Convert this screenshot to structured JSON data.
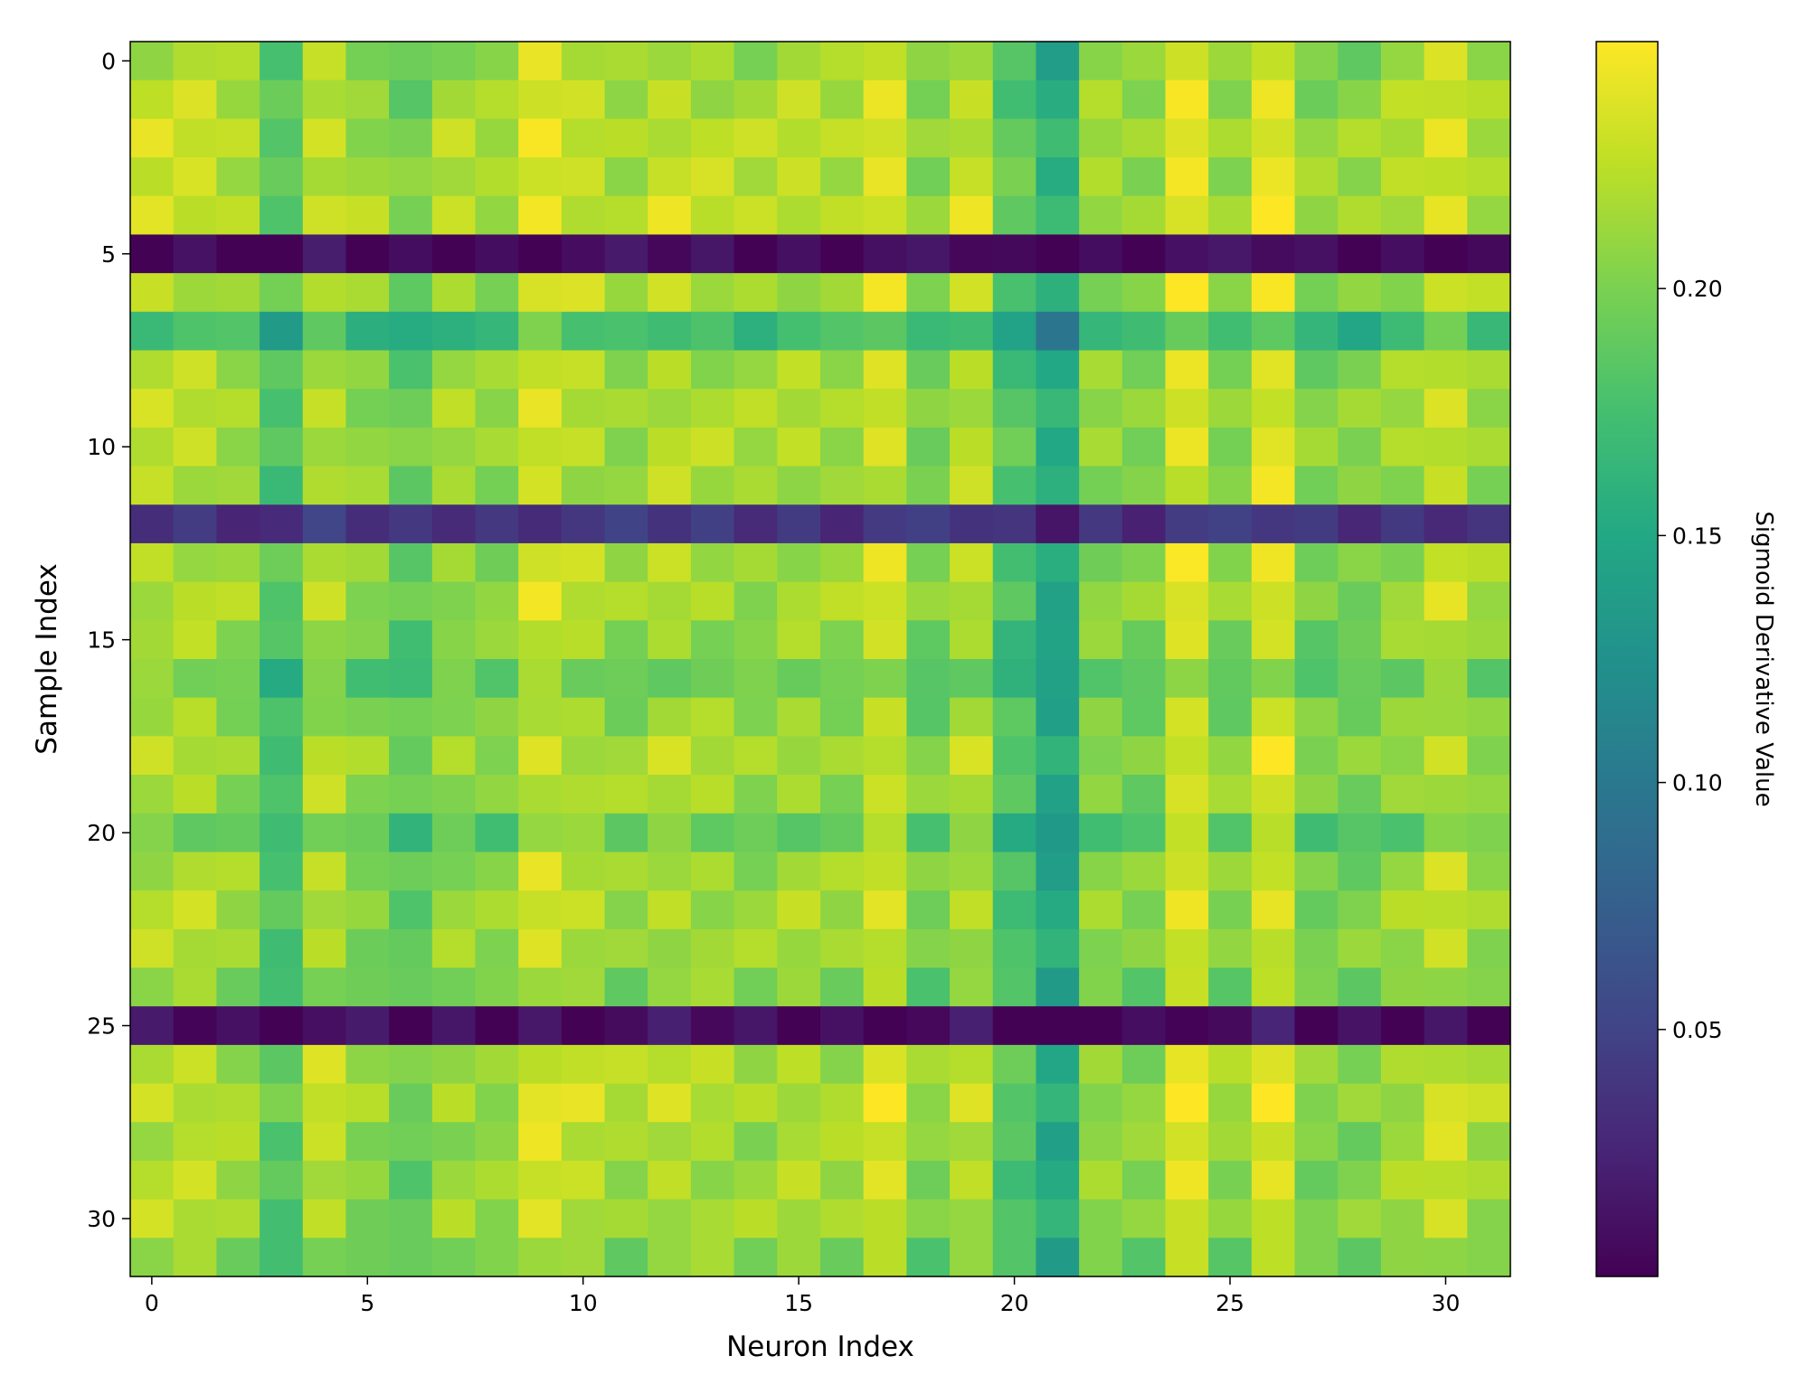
{
  "chart_data": {
    "type": "heatmap",
    "title": "",
    "xlabel": "Neuron Index",
    "ylabel": "Sample Index",
    "rows": 32,
    "cols": 32,
    "xlim": [
      -0.5,
      31.5
    ],
    "ylim": [
      31.5,
      -0.5
    ],
    "x_ticks": [
      0,
      5,
      10,
      15,
      20,
      25,
      30
    ],
    "y_ticks": [
      0,
      5,
      10,
      15,
      20,
      25,
      30
    ],
    "colormap": "viridis",
    "colorbar": {
      "label": "Sigmoid Derivative Value",
      "range": [
        0.0,
        0.25
      ],
      "ticks": [
        0.05,
        0.1,
        0.15,
        0.2
      ],
      "tick_labels": [
        "0.05",
        "0.10",
        "0.15",
        "0.20"
      ]
    },
    "row_levels": [
      0.22,
      0.225,
      0.23,
      0.228,
      0.232,
      0.008,
      0.225,
      0.18,
      0.22,
      0.224,
      0.224,
      0.22,
      0.04,
      0.222,
      0.224,
      0.215,
      0.2,
      0.215,
      0.224,
      0.22,
      0.2,
      0.22,
      0.222,
      0.22,
      0.21,
      0.01,
      0.226,
      0.23,
      0.222,
      0.222,
      0.222,
      0.21
    ],
    "col_offsets": [
      0.0,
      0.0,
      -0.01,
      -0.04,
      0.0,
      -0.015,
      -0.03,
      -0.01,
      -0.015,
      0.01,
      0.0,
      -0.01,
      0.0,
      -0.005,
      -0.01,
      -0.005,
      -0.01,
      0.01,
      -0.02,
      0.0,
      -0.04,
      -0.07,
      -0.015,
      -0.02,
      0.015,
      -0.015,
      0.015,
      -0.02,
      -0.02,
      -0.01,
      0.005,
      -0.01
    ]
  }
}
